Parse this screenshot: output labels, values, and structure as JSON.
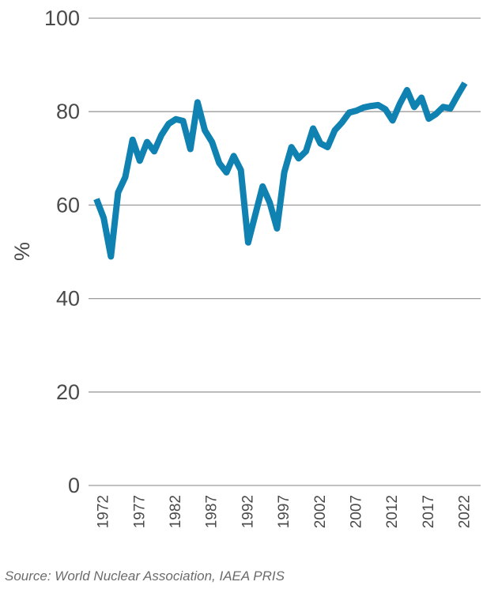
{
  "chart_data": {
    "type": "line",
    "title": "",
    "xlabel": "",
    "ylabel": "%",
    "ylim": [
      0,
      100
    ],
    "y_ticks": [
      "0",
      "20",
      "40",
      "60",
      "80",
      "100"
    ],
    "x_tick_labels": [
      "1972",
      "1977",
      "1982",
      "1987",
      "1992",
      "1997",
      "2002",
      "2007",
      "2012",
      "2017",
      "2022"
    ],
    "grid": "horizontal",
    "line_color": "#0f82b2",
    "grid_color": "#9b9b9b",
    "x": [
      1971,
      1972,
      1973,
      1974,
      1975,
      1976,
      1977,
      1978,
      1979,
      1980,
      1981,
      1982,
      1983,
      1984,
      1985,
      1986,
      1987,
      1988,
      1989,
      1990,
      1991,
      1992,
      1993,
      1994,
      1995,
      1996,
      1997,
      1998,
      1999,
      2000,
      2001,
      2002,
      2003,
      2004,
      2005,
      2006,
      2007,
      2008,
      2009,
      2010,
      2011,
      2012,
      2013,
      2014,
      2015,
      2016,
      2017,
      2018,
      2019,
      2020,
      2021,
      2022
    ],
    "series": [
      {
        "values": [
          61.3,
          57.3,
          49,
          62.7,
          66,
          74,
          69.5,
          73.5,
          71.5,
          75,
          77.4,
          78.4,
          78,
          72,
          82,
          76,
          73.5,
          69,
          67,
          70.5,
          67.5,
          52,
          58,
          64,
          60.5,
          55,
          67,
          72.4,
          70,
          71.5,
          76.4,
          73.2,
          72.4,
          76,
          77.7,
          79.8,
          80.2,
          80.9,
          81.2,
          81.4,
          80.5,
          78.1,
          81.7,
          84.6,
          81,
          83,
          78.5,
          79.5,
          81,
          80.7,
          83.5,
          86.1
        ]
      }
    ]
  },
  "source": "Source: World Nuclear Association, IAEA PRIS"
}
